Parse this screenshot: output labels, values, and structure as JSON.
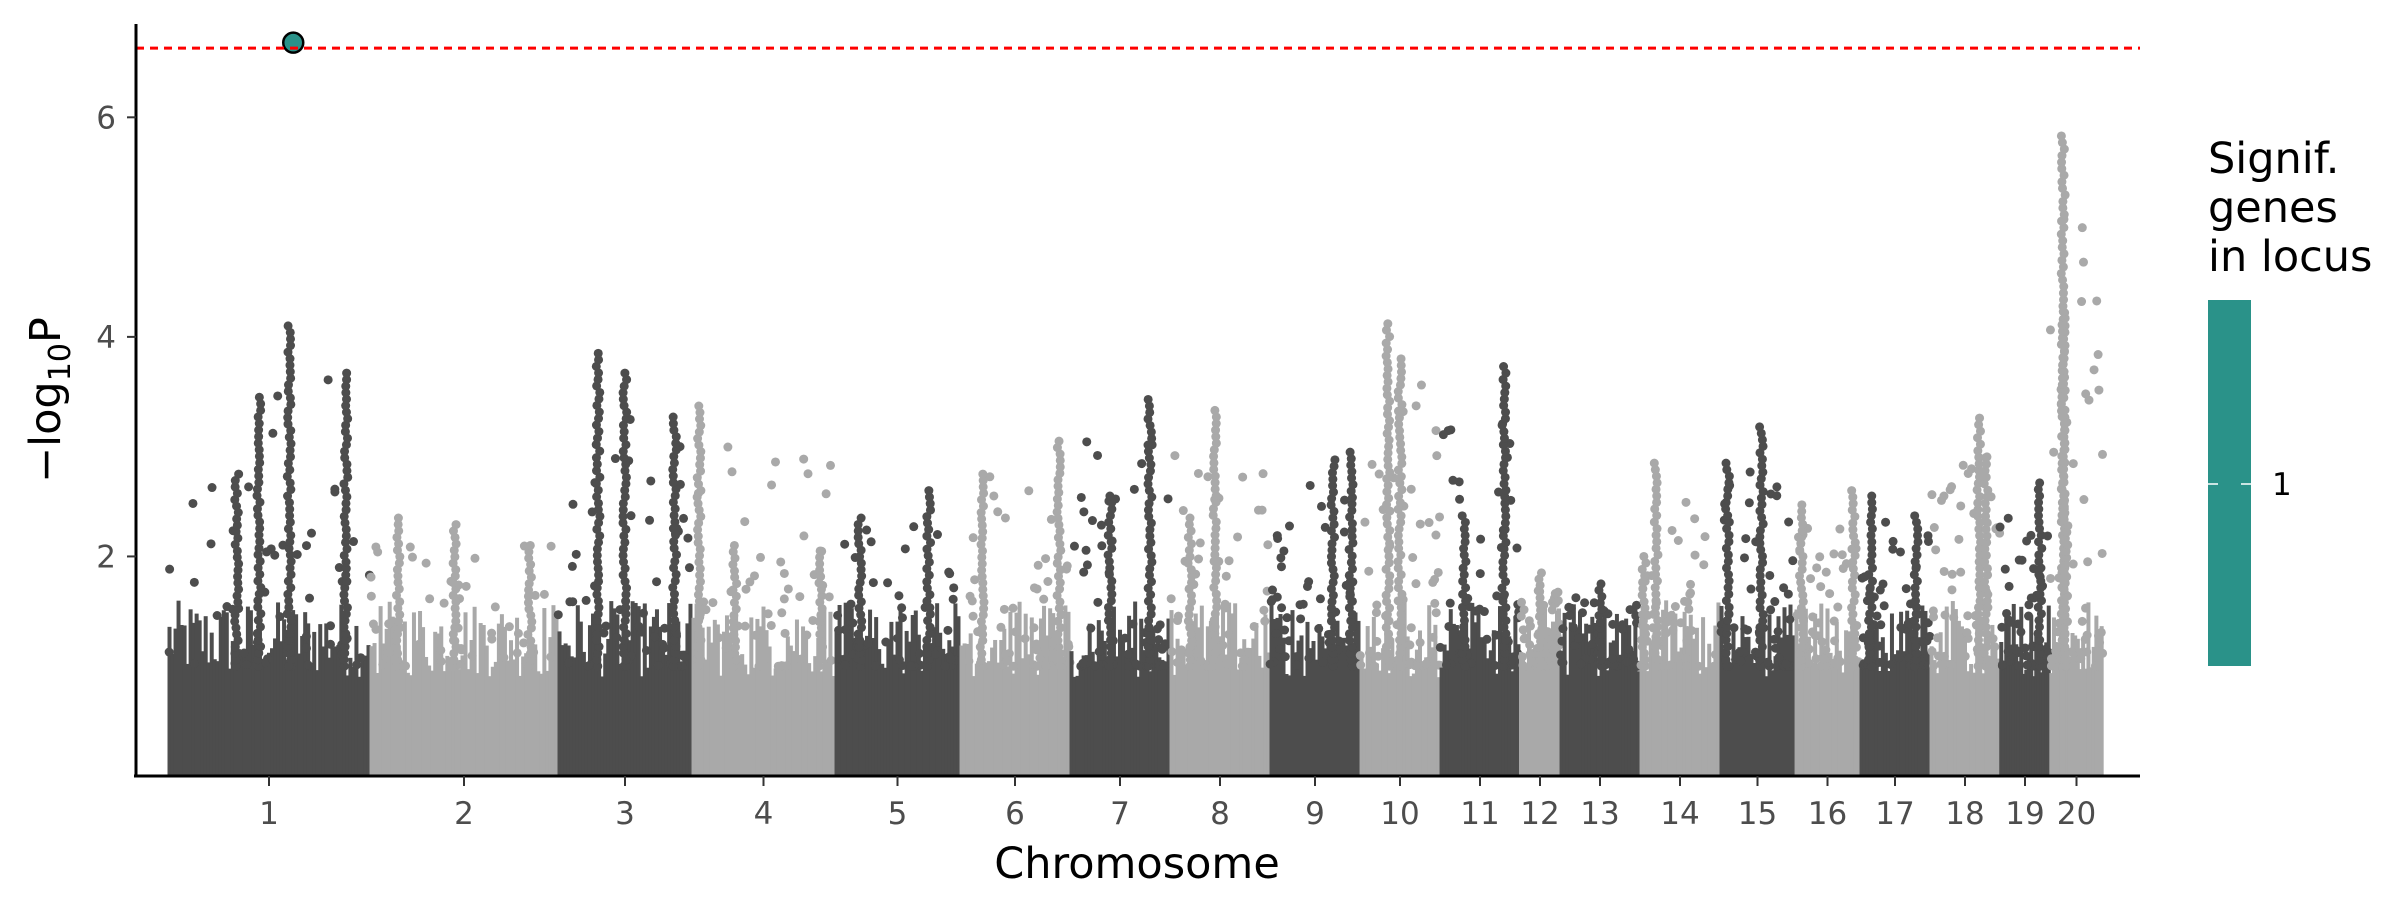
{
  "chart_data": {
    "type": "scatter",
    "subtype": "manhattan",
    "title": "",
    "xlabel": "Chromosome",
    "ylabel": "−log10P",
    "ylabel_parts": {
      "prefix": "−log",
      "subscript": "10",
      "suffix": "P"
    },
    "ylim": [
      0,
      6.85
    ],
    "yticks": [
      "2",
      "4",
      "6"
    ],
    "grid": false,
    "significance_threshold": {
      "value": 6.63,
      "color": "#ff0000",
      "style": "dashed"
    },
    "colors": {
      "dark": "#4d4d4d",
      "light": "#a9a9a9",
      "highlight": "#2a9289",
      "highlight_outline": "#000000"
    },
    "chromosomes": [
      {
        "label": "1",
        "color": "dark",
        "max": 4.1,
        "peaks": [
          {
            "pos": 0.45,
            "value": 3.45
          },
          {
            "pos": 0.6,
            "value": 4.1
          },
          {
            "pos": 0.88,
            "value": 3.67
          },
          {
            "pos": 0.34,
            "value": 2.75
          }
        ]
      },
      {
        "label": "2",
        "color": "light",
        "max": 2.4,
        "peaks": [
          {
            "pos": 0.15,
            "value": 2.35
          },
          {
            "pos": 0.45,
            "value": 2.29
          },
          {
            "pos": 0.85,
            "value": 2.1
          }
        ]
      },
      {
        "label": "3",
        "color": "dark",
        "max": 3.85,
        "peaks": [
          {
            "pos": 0.3,
            "value": 3.85
          },
          {
            "pos": 0.5,
            "value": 3.67
          },
          {
            "pos": 0.87,
            "value": 3.27
          }
        ]
      },
      {
        "label": "4",
        "color": "light",
        "max": 3.37,
        "peaks": [
          {
            "pos": 0.05,
            "value": 3.37
          },
          {
            "pos": 0.3,
            "value": 2.1
          },
          {
            "pos": 0.9,
            "value": 2.05
          }
        ]
      },
      {
        "label": "5",
        "color": "dark",
        "max": 2.6,
        "peaks": [
          {
            "pos": 0.2,
            "value": 2.35
          },
          {
            "pos": 0.75,
            "value": 2.6
          }
        ]
      },
      {
        "label": "6",
        "color": "light",
        "max": 3.05,
        "peaks": [
          {
            "pos": 0.9,
            "value": 3.05
          },
          {
            "pos": 0.2,
            "value": 2.75
          }
        ]
      },
      {
        "label": "7",
        "color": "dark",
        "max": 3.43,
        "peaks": [
          {
            "pos": 0.4,
            "value": 2.55
          },
          {
            "pos": 0.8,
            "value": 3.43
          }
        ]
      },
      {
        "label": "8",
        "color": "light",
        "max": 3.33,
        "peaks": [
          {
            "pos": 0.45,
            "value": 3.33
          },
          {
            "pos": 0.2,
            "value": 2.35
          }
        ]
      },
      {
        "label": "9",
        "color": "dark",
        "max": 2.95,
        "peaks": [
          {
            "pos": 0.7,
            "value": 2.88
          },
          {
            "pos": 0.9,
            "value": 2.95
          }
        ]
      },
      {
        "label": "10",
        "color": "light",
        "max": 4.12,
        "peaks": [
          {
            "pos": 0.35,
            "value": 4.12
          },
          {
            "pos": 0.5,
            "value": 3.8
          }
        ]
      },
      {
        "label": "11",
        "color": "dark",
        "max": 3.73,
        "peaks": [
          {
            "pos": 0.8,
            "value": 3.73
          },
          {
            "pos": 0.3,
            "value": 2.37
          }
        ]
      },
      {
        "label": "12",
        "color": "light",
        "max": 1.85,
        "peaks": [
          {
            "pos": 0.5,
            "value": 1.85
          }
        ]
      },
      {
        "label": "13",
        "color": "dark",
        "max": 1.75,
        "peaks": [
          {
            "pos": 0.5,
            "value": 1.75
          }
        ]
      },
      {
        "label": "14",
        "color": "light",
        "max": 2.85,
        "peaks": [
          {
            "pos": 0.2,
            "value": 2.85
          },
          {
            "pos": 0.05,
            "value": 2.0
          }
        ]
      },
      {
        "label": "15",
        "color": "dark",
        "max": 3.18,
        "peaks": [
          {
            "pos": 0.55,
            "value": 3.18
          },
          {
            "pos": 0.1,
            "value": 2.85
          }
        ]
      },
      {
        "label": "16",
        "color": "light",
        "max": 2.6,
        "peaks": [
          {
            "pos": 0.9,
            "value": 2.6
          },
          {
            "pos": 0.1,
            "value": 2.47
          }
        ]
      },
      {
        "label": "17",
        "color": "dark",
        "max": 2.55,
        "peaks": [
          {
            "pos": 0.15,
            "value": 2.55
          },
          {
            "pos": 0.8,
            "value": 2.37
          }
        ]
      },
      {
        "label": "18",
        "color": "light",
        "max": 3.26,
        "peaks": [
          {
            "pos": 0.7,
            "value": 3.26
          },
          {
            "pos": 0.8,
            "value": 2.9
          }
        ]
      },
      {
        "label": "19",
        "color": "dark",
        "max": 2.67,
        "peaks": [
          {
            "pos": 0.8,
            "value": 2.67
          }
        ]
      },
      {
        "label": "20",
        "color": "light",
        "max": 5.83,
        "peaks": [
          {
            "pos": 0.25,
            "value": 5.83
          },
          {
            "pos": 0.25,
            "value": 4.23
          },
          {
            "pos": 0.3,
            "value": 2.57
          }
        ]
      }
    ],
    "highlight_points": [
      {
        "chromosome": "1",
        "value": 6.68
      }
    ],
    "legend": {
      "title_lines": [
        "Signif.",
        "genes",
        "in locus"
      ],
      "entries": [
        {
          "label": "1",
          "color": "#2a9289"
        }
      ],
      "placement": "right"
    }
  }
}
